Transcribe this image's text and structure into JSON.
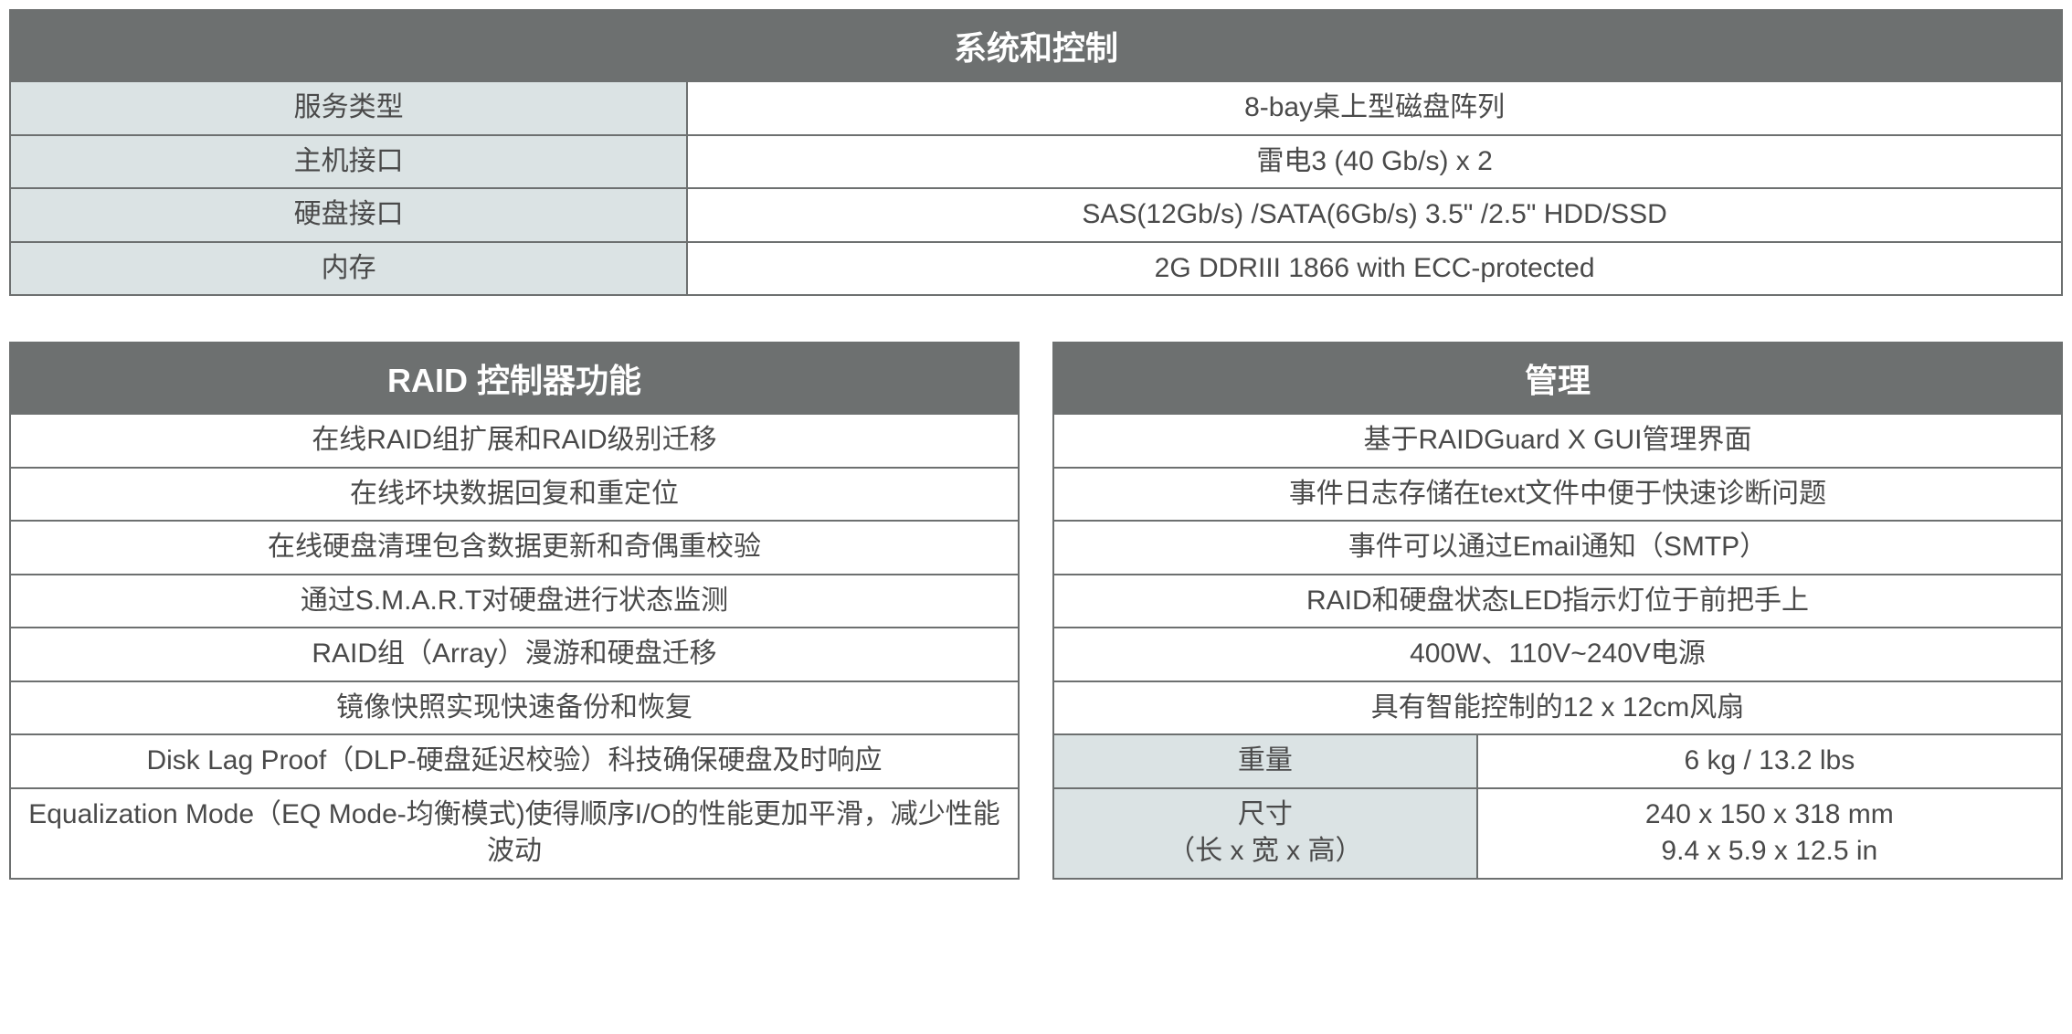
{
  "colors": {
    "header_bg": "#6d7070",
    "header_text": "#ffffff",
    "label_bg": "#dbe3e4",
    "value_bg": "#ffffff",
    "border": "#6d7070",
    "text": "#4a4a4a"
  },
  "typography": {
    "header_fontsize": 36,
    "cell_fontsize": 30,
    "header_weight": "bold"
  },
  "layout": {
    "full_width": 2248,
    "label_col_pct": 33,
    "gap_between_tables": 36,
    "top_margin_between_blocks": 50
  },
  "system_table": {
    "title": "系统和控制",
    "rows": [
      {
        "label": "服务类型",
        "value": "8-bay桌上型磁盘阵列"
      },
      {
        "label": "主机接口",
        "value": "雷电3 (40 Gb/s) x 2"
      },
      {
        "label": "硬盘接口",
        "value": "SAS(12Gb/s) /SATA(6Gb/s) 3.5\" /2.5\"  HDD/SSD"
      },
      {
        "label": "内存",
        "value": "2G DDRIII 1866 with ECC-protected"
      }
    ]
  },
  "raid_table": {
    "title": "RAID 控制器功能",
    "rows": [
      "在线RAID组扩展和RAID级别迁移",
      "在线坏块数据回复和重定位",
      "在线硬盘清理包含数据更新和奇偶重校验",
      "通过S.M.A.R.T对硬盘进行状态监测",
      "RAID组（Array）漫游和硬盘迁移",
      "镜像快照实现快速备份和恢复",
      "Disk Lag Proof（DLP-硬盘延迟校验）科技确保硬盘及时响应",
      "Equalization Mode（EQ Mode-均衡模式)使得顺序I/O的性能更加平滑，减少性能波动"
    ]
  },
  "mgmt_table": {
    "title": "管理",
    "feature_rows": [
      "基于RAIDGuard X GUI管理界面",
      "事件日志存储在text文件中便于快速诊断问题",
      "事件可以通过Email通知（SMTP）",
      "RAID和硬盘状态LED指示灯位于前把手上",
      "400W、110V~240V电源",
      "具有智能控制的12 x 12cm风扇"
    ],
    "kv_rows": [
      {
        "label": "重量",
        "value": "6 kg / 13.2 lbs"
      },
      {
        "label": "尺寸\n（长 x 宽 x 高）",
        "value": "240 x 150 x 318 mm\n9.4 x 5.9 x 12.5 in"
      }
    ]
  }
}
